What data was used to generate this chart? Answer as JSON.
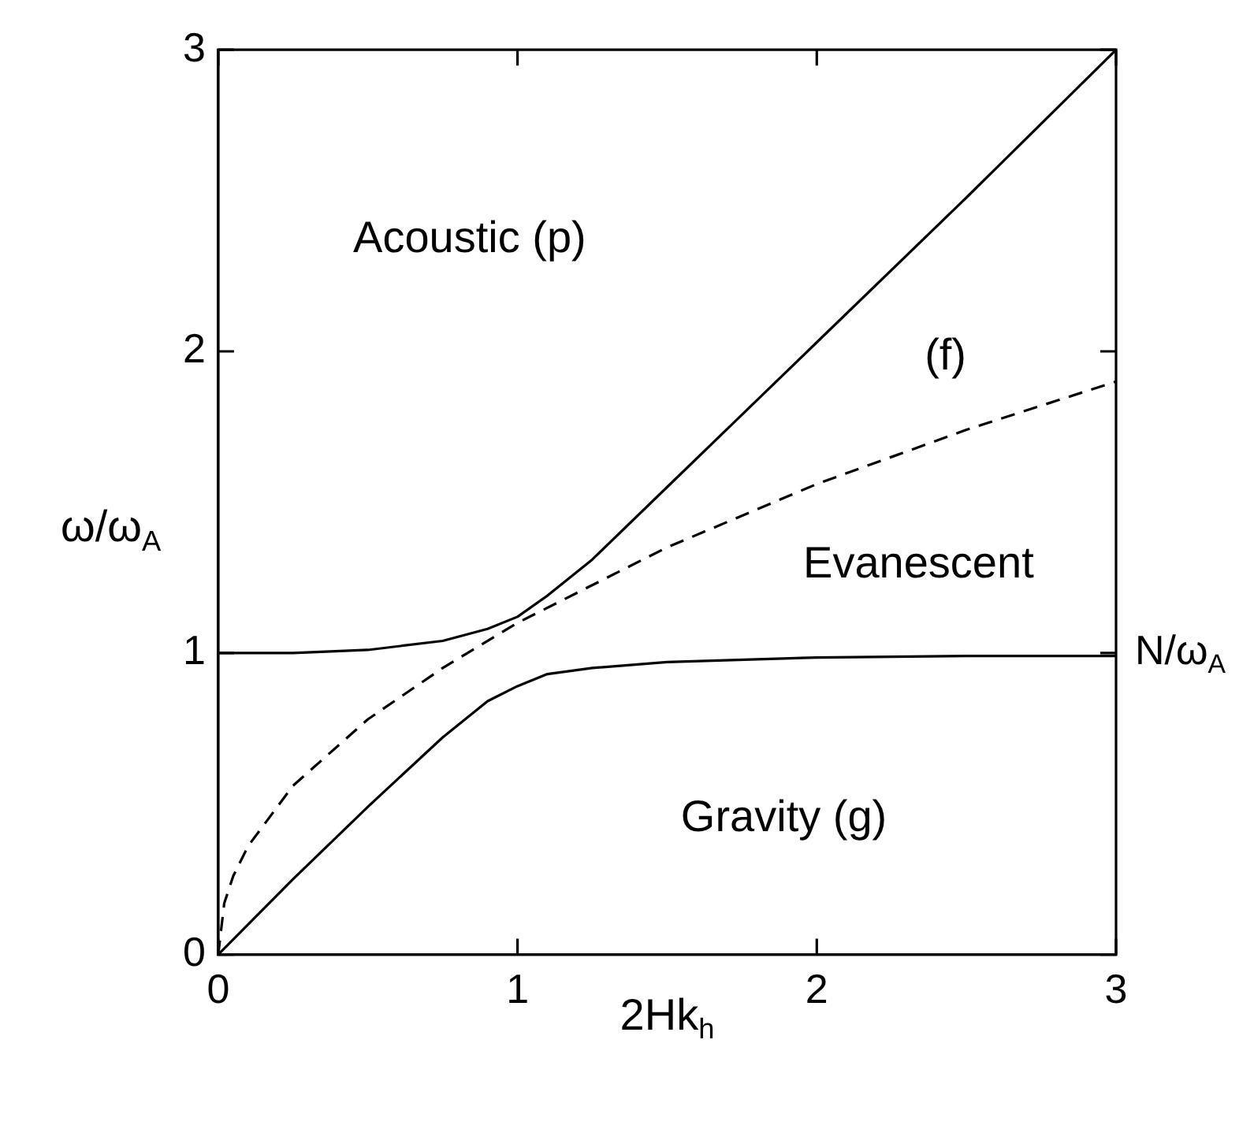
{
  "chart_data": {
    "type": "line",
    "xlabel": "2Hk$_{h}$",
    "ylabel": "ω/ω$_{A}$",
    "xlim": [
      0,
      3
    ],
    "ylim": [
      0,
      3
    ],
    "xticks": [
      0,
      1,
      2,
      3
    ],
    "yticks": [
      0,
      1,
      2,
      3
    ],
    "grid": false,
    "legend": false,
    "marker": "none",
    "series": [
      {
        "color": "#000000",
        "line_style": "solid",
        "x": [
          0,
          0.25,
          0.5,
          0.75,
          0.9,
          1.0,
          1.1,
          1.25,
          1.5,
          1.75,
          2,
          2.5,
          3
        ],
        "values": [
          1,
          1,
          1.01,
          1.04,
          1.08,
          1.12,
          1.19,
          1.31,
          1.55,
          1.79,
          2.03,
          2.51,
          3
        ]
      },
      {
        "color": "#000000",
        "line_style": "solid",
        "x": [
          0,
          0.25,
          0.5,
          0.75,
          0.9,
          1.0,
          1.1,
          1.25,
          1.5,
          2,
          2.5,
          3
        ],
        "values": [
          0,
          0.25,
          0.49,
          0.72,
          0.84,
          0.89,
          0.93,
          0.95,
          0.97,
          0.985,
          0.99,
          0.99
        ]
      },
      {
        "color": "#000000",
        "line_style": "dashed",
        "x": [
          0,
          0.02,
          0.05,
          0.1,
          0.25,
          0.5,
          0.75,
          1,
          1.5,
          2,
          2.5,
          3
        ],
        "values": [
          0,
          0.17,
          0.26,
          0.36,
          0.56,
          0.78,
          0.95,
          1.1,
          1.35,
          1.56,
          1.74,
          1.9
        ]
      }
    ],
    "annotations": [
      "Acoustic (p)",
      "(f)",
      "Evanescent",
      "Gravity (g)",
      {
        "text": "N/ω$_{A}$",
        "x": 3,
        "y": 1
      }
    ]
  }
}
